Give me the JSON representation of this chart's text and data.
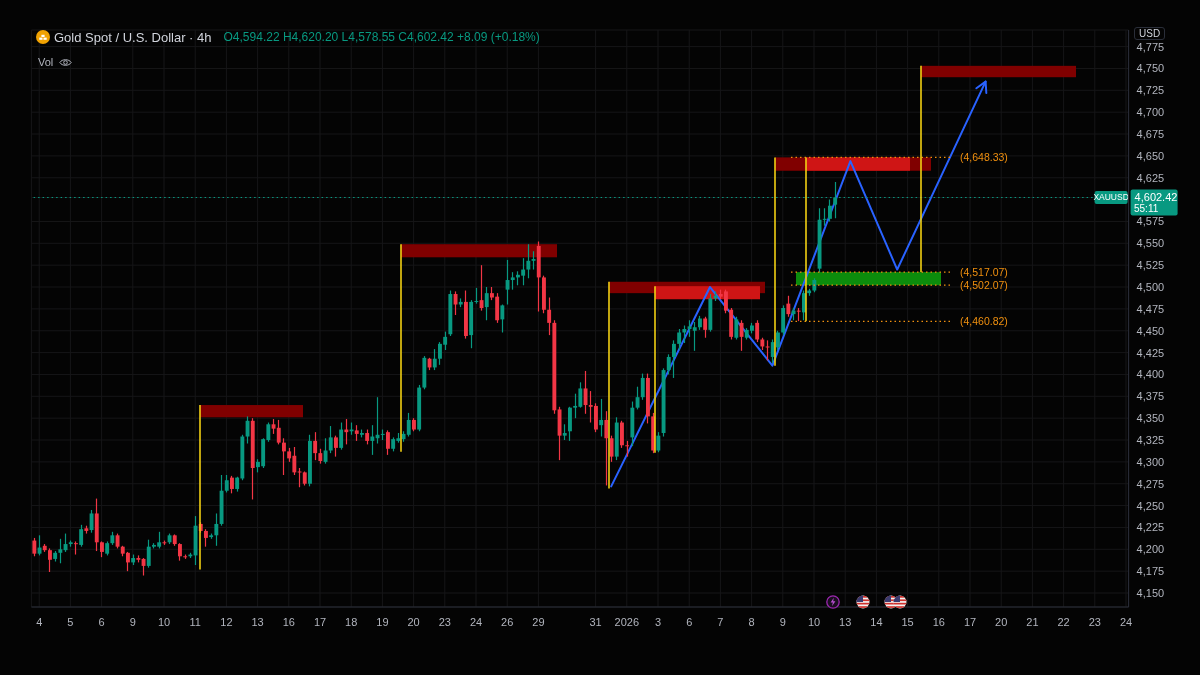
{
  "chart_data": {
    "type": "candlestick",
    "title": "Gold Spot / U.S. Dollar · 4h",
    "subtitle": "O4,594.22 H4,620.20 L4,578.55 C4,602.42 +8.09 (+0.18%)",
    "ylabel": "USD",
    "categories": [
      null,
      "4",
      null,
      null,
      null,
      null,
      null,
      "5",
      null,
      null,
      null,
      null,
      null,
      "6",
      null,
      null,
      null,
      null,
      null,
      "9",
      null,
      null,
      null,
      null,
      null,
      "10",
      null,
      null,
      null,
      null,
      null,
      "11",
      null,
      null,
      null,
      null,
      null,
      "12",
      null,
      null,
      null,
      null,
      null,
      "13",
      null,
      null,
      null,
      null,
      null,
      "16",
      null,
      null,
      null,
      null,
      null,
      "17",
      null,
      null,
      null,
      null,
      null,
      "18",
      null,
      null,
      null,
      null,
      null,
      "19",
      null,
      null,
      null,
      null,
      null,
      "20",
      null,
      null,
      null,
      null,
      null,
      "23",
      null,
      null,
      null,
      null,
      null,
      "24",
      null,
      null,
      null,
      null,
      null,
      "26",
      null,
      null,
      null,
      null,
      null,
      "29",
      null,
      null,
      null,
      null,
      null,
      null,
      null,
      null,
      null,
      null,
      "31",
      null,
      null,
      null,
      null,
      null,
      "2026",
      null,
      null,
      null,
      null,
      null,
      "3",
      null,
      null,
      null,
      null,
      null,
      "6",
      null,
      null,
      null,
      null,
      null,
      "7",
      null,
      null,
      null,
      null,
      null,
      "8",
      null,
      null,
      null,
      null,
      null,
      "9",
      null,
      null,
      null,
      null,
      null,
      "10",
      null,
      null,
      null,
      null,
      null,
      "13",
      null,
      null,
      null,
      null,
      null,
      "14",
      null,
      null,
      null,
      null,
      null,
      "15",
      null,
      null,
      null,
      null,
      null,
      "16",
      null,
      null,
      null,
      null,
      null,
      "17",
      null,
      null,
      null,
      null,
      null,
      "20",
      null,
      null,
      null,
      null,
      null,
      "21",
      null,
      null,
      null,
      null,
      null,
      "22",
      null,
      null,
      null,
      null,
      null,
      "23",
      null,
      null,
      null,
      null,
      null,
      "24"
    ],
    "ohlc": [
      [
        4210,
        4213,
        4192,
        4195
      ],
      [
        4195,
        4216,
        4193,
        4202
      ],
      [
        4204,
        4206,
        4197,
        4199
      ],
      [
        4199,
        4201,
        4174,
        4188
      ],
      [
        4189,
        4198,
        4186,
        4196
      ],
      [
        4196,
        4212,
        4184,
        4200
      ],
      [
        4199,
        4218,
        4197,
        4206
      ],
      [
        4206,
        4210,
        4203,
        4208
      ],
      [
        4207,
        4209,
        4194,
        4206
      ],
      [
        4205,
        4228,
        4203,
        4223
      ],
      [
        4224,
        4227,
        4218,
        4221
      ],
      [
        4222,
        4245,
        4219,
        4241
      ],
      [
        4241,
        4258,
        4198,
        4208
      ],
      [
        4208,
        4209,
        4191,
        4197
      ],
      [
        4195,
        4209,
        4193,
        4207
      ],
      [
        4207,
        4220,
        4205,
        4216
      ],
      [
        4216,
        4218,
        4201,
        4203
      ],
      [
        4203,
        4204,
        4192,
        4195
      ],
      [
        4196,
        4197,
        4175,
        4185
      ],
      [
        4185,
        4194,
        4182,
        4190
      ],
      [
        4190,
        4193,
        4185,
        4188
      ],
      [
        4189,
        4190,
        4170,
        4181
      ],
      [
        4181,
        4211,
        4179,
        4203
      ],
      [
        4203,
        4207,
        4201,
        4205
      ],
      [
        4203,
        4220,
        4201,
        4208
      ],
      [
        4208,
        4210,
        4205,
        4207
      ],
      [
        4208,
        4218,
        4206,
        4216
      ],
      [
        4216,
        4217,
        4204,
        4206
      ],
      [
        4206,
        4207,
        4187,
        4192
      ],
      [
        4192,
        4194,
        4189,
        4191
      ],
      [
        4192,
        4196,
        4190,
        4194
      ],
      [
        4193,
        4238,
        4182,
        4227
      ],
      [
        4229,
        4231,
        4219,
        4221
      ],
      [
        4221,
        4223,
        4203,
        4213
      ],
      [
        4214,
        4218,
        4212,
        4216
      ],
      [
        4216,
        4241,
        4204,
        4229
      ],
      [
        4229,
        4285,
        4227,
        4267
      ],
      [
        4267,
        4285,
        4265,
        4279
      ],
      [
        4282,
        4284,
        4264,
        4269
      ],
      [
        4269,
        4283,
        4266,
        4282
      ],
      [
        4281,
        4331,
        4279,
        4329
      ],
      [
        4329,
        4352,
        4321,
        4347
      ],
      [
        4347,
        4350,
        4257,
        4293
      ],
      [
        4294,
        4303,
        4288,
        4300
      ],
      [
        4295,
        4327,
        4293,
        4326
      ],
      [
        4325,
        4345,
        4323,
        4343
      ],
      [
        4343,
        4349,
        4332,
        4338
      ],
      [
        4339,
        4348,
        4320,
        4322
      ],
      [
        4322,
        4327,
        4285,
        4312
      ],
      [
        4312,
        4316,
        4300,
        4304
      ],
      [
        4307,
        4317,
        4285,
        4288
      ],
      [
        4289,
        4293,
        4271,
        4288
      ],
      [
        4288,
        4289,
        4273,
        4275
      ],
      [
        4275,
        4331,
        4272,
        4324
      ],
      [
        4324,
        4334,
        4302,
        4310
      ],
      [
        4310,
        4315,
        4298,
        4301
      ],
      [
        4300,
        4327,
        4298,
        4313
      ],
      [
        4313,
        4341,
        4310,
        4328
      ],
      [
        4328,
        4330,
        4306,
        4316
      ],
      [
        4316,
        4345,
        4314,
        4337
      ],
      [
        4337,
        4349,
        4320,
        4334
      ],
      [
        4335,
        4345,
        4331,
        4337
      ],
      [
        4336,
        4342,
        4324,
        4332
      ],
      [
        4331,
        4337,
        4328,
        4333
      ],
      [
        4333,
        4337,
        4320,
        4324
      ],
      [
        4324,
        4342,
        4308,
        4329
      ],
      [
        4327,
        4374,
        4321,
        4331
      ],
      [
        4331,
        4337,
        4325,
        4332
      ],
      [
        4334,
        4336,
        4308,
        4315
      ],
      [
        4315,
        4328,
        4312,
        4326
      ],
      [
        4324,
        4333,
        4322,
        4327
      ],
      [
        4326,
        4335,
        4323,
        4332
      ],
      [
        4331,
        4356,
        4329,
        4348
      ],
      [
        4348,
        4350,
        4335,
        4337
      ],
      [
        4337,
        4388,
        4335,
        4385
      ],
      [
        4385,
        4421,
        4383,
        4419
      ],
      [
        4418,
        4419,
        4405,
        4408
      ],
      [
        4408,
        4429,
        4405,
        4418
      ],
      [
        4418,
        4437,
        4411,
        4435
      ],
      [
        4434,
        4449,
        4428,
        4443
      ],
      [
        4446,
        4496,
        4444,
        4492
      ],
      [
        4492,
        4495,
        4468,
        4480
      ],
      [
        4480,
        4487,
        4477,
        4483
      ],
      [
        4483,
        4496,
        4441,
        4444
      ],
      [
        4445,
        4485,
        4430,
        4483
      ],
      [
        4483,
        4499,
        4481,
        4484
      ],
      [
        4485,
        4525,
        4473,
        4476
      ],
      [
        4477,
        4500,
        4462,
        4493
      ],
      [
        4493,
        4500,
        4485,
        4488
      ],
      [
        4489,
        4493,
        4459,
        4462
      ],
      [
        4463,
        4480,
        4448,
        4479
      ],
      [
        4497,
        4531,
        4480,
        4508
      ],
      [
        4508,
        4517,
        4497,
        4511
      ],
      [
        4511,
        4518,
        4502,
        4514
      ],
      [
        4513,
        4533,
        4502,
        4520
      ],
      [
        4520,
        4549,
        4510,
        4530
      ],
      [
        4530,
        4541,
        4520,
        4532
      ],
      [
        4547,
        4552,
        4472,
        4511
      ],
      [
        4511,
        4513,
        4470,
        4474
      ],
      [
        4474,
        4488,
        4445,
        4459
      ],
      [
        4459,
        4462,
        4355,
        4359
      ],
      [
        4360,
        4363,
        4302,
        4330
      ],
      [
        4330,
        4343,
        4325,
        4333
      ],
      [
        4335,
        4363,
        4324,
        4362
      ],
      [
        4362,
        4378,
        4350,
        4364
      ],
      [
        4363,
        4391,
        4362,
        4384
      ],
      [
        4384,
        4404,
        4355,
        4365
      ],
      [
        4365,
        4381,
        4345,
        4363
      ],
      [
        4364,
        4367,
        4334,
        4337
      ],
      [
        4342,
        4372,
        4329,
        4348
      ],
      [
        4348,
        4358,
        4273,
        4327
      ],
      [
        4327,
        4330,
        4300,
        4306
      ],
      [
        4306,
        4351,
        4302,
        4345
      ],
      [
        4345,
        4347,
        4316,
        4319
      ],
      [
        4319,
        4324,
        4306,
        4318
      ],
      [
        4328,
        4369,
        4318,
        4362
      ],
      [
        4362,
        4386,
        4360,
        4374
      ],
      [
        4374,
        4401,
        4371,
        4396
      ],
      [
        4396,
        4401,
        4344,
        4352
      ],
      [
        4352,
        4356,
        4310,
        4313
      ],
      [
        4313,
        4334,
        4311,
        4330
      ],
      [
        4333,
        4407,
        4329,
        4405
      ],
      [
        4405,
        4423,
        4400,
        4420
      ],
      [
        4420,
        4439,
        4396,
        4435
      ],
      [
        4435,
        4452,
        4428,
        4448
      ],
      [
        4448,
        4456,
        4436,
        4452
      ],
      [
        4452,
        4462,
        4443,
        4455
      ],
      [
        4450,
        4460,
        4427,
        4454
      ],
      [
        4454,
        4467,
        4451,
        4464
      ],
      [
        4464,
        4466,
        4442,
        4451
      ],
      [
        4451,
        4492,
        4449,
        4487
      ],
      [
        4487,
        4495,
        4484,
        4490
      ],
      [
        4492,
        4497,
        4486,
        4489
      ],
      [
        4495,
        4497,
        4470,
        4473
      ],
      [
        4474,
        4476,
        4440,
        4443
      ],
      [
        4442,
        4466,
        4440,
        4463
      ],
      [
        4459,
        4462,
        4427,
        4443
      ],
      [
        4442,
        4453,
        4440,
        4451
      ],
      [
        4450,
        4459,
        4447,
        4456
      ],
      [
        4459,
        4462,
        4437,
        4440
      ],
      [
        4440,
        4442,
        4428,
        4432
      ],
      [
        4432,
        4439,
        4416,
        4431
      ],
      [
        4420,
        4440,
        4413,
        4437
      ],
      [
        4431,
        4450,
        4428,
        4448
      ],
      [
        4448,
        4479,
        4445,
        4476
      ],
      [
        4481,
        4490,
        4466,
        4469
      ],
      [
        4469,
        4476,
        4462,
        4473
      ],
      [
        4473,
        4476,
        4461,
        4472
      ],
      [
        4471,
        4496,
        4462,
        4493
      ],
      [
        4493,
        4498,
        4490,
        4496
      ],
      [
        4496,
        4510,
        4494,
        4508
      ],
      [
        4521,
        4590,
        4517,
        4577
      ],
      [
        4577,
        4590,
        4570,
        4578
      ],
      [
        4578,
        4600,
        4575,
        4593
      ],
      [
        4594.22,
        4620.2,
        4578.55,
        4602.42
      ],
      null,
      null,
      null,
      null,
      null,
      null,
      null,
      null,
      null,
      null,
      null,
      null,
      null,
      null,
      null,
      null,
      null,
      null,
      null,
      null,
      null,
      null,
      null,
      null,
      null,
      null,
      null,
      null,
      null,
      null,
      null,
      null,
      null,
      null,
      null,
      null,
      null,
      null,
      null,
      null,
      null,
      null,
      null,
      null,
      null,
      null,
      null,
      null,
      null,
      null,
      null,
      null,
      null,
      null,
      null,
      null
    ],
    "colors": [
      "#f23645",
      "#089981",
      "#f23645",
      "#f23645",
      "#089981",
      "#089981",
      "#089981",
      "#089981",
      "#f23645",
      "#089981",
      "#f23645",
      "#089981",
      "#f23645",
      "#f23645",
      "#089981",
      "#089981",
      "#f23645",
      "#f23645",
      "#f23645",
      "#089981",
      "#f23645",
      "#f23645",
      "#089981",
      "#089981",
      "#089981",
      "#f23645",
      "#089981",
      "#f23645",
      "#f23645",
      "#f23645",
      "#089981",
      "#089981",
      "#f23645",
      "#f23645",
      "#089981",
      "#089981",
      "#089981",
      "#089981",
      "#f23645",
      "#089981",
      "#089981",
      "#089981",
      "#f23645",
      "#089981",
      "#089981",
      "#089981",
      "#f23645",
      "#f23645",
      "#f23645",
      "#f23645",
      "#f23645",
      "#f23645",
      "#f23645",
      "#089981",
      "#f23645",
      "#f23645",
      "#089981",
      "#089981",
      "#f23645",
      "#089981",
      "#f23645",
      "#089981",
      "#f23645",
      "#089981",
      "#f23645",
      "#089981",
      "#089981",
      "#089981",
      "#f23645",
      "#089981",
      "#089981",
      "#089981",
      "#089981",
      "#f23645",
      "#089981",
      "#089981",
      "#f23645",
      "#089981",
      "#089981",
      "#089981",
      "#089981",
      "#f23645",
      "#089981",
      "#f23645",
      "#089981",
      "#089981",
      "#f23645",
      "#089981",
      "#f23645",
      "#f23645",
      "#089981",
      "#089981",
      "#089981",
      "#089981",
      "#089981",
      "#089981",
      "#089981",
      "#f23645",
      "#f23645",
      "#f23645",
      "#f23645",
      "#f23645",
      "#089981",
      "#089981",
      "#089981",
      "#089981",
      "#f23645",
      "#f23645",
      "#f23645",
      "#089981",
      "#f23645",
      "#f23645",
      "#089981",
      "#f23645",
      "#f23645",
      "#089981",
      "#089981",
      "#089981",
      "#f23645",
      "#f23645",
      "#089981",
      "#089981",
      "#089981",
      "#089981",
      "#089981",
      "#089981",
      "#089981",
      "#089981",
      "#089981",
      "#f23645",
      "#089981",
      "#089981",
      "#f23645",
      "#f23645",
      "#f23645",
      "#089981",
      "#f23645",
      "#089981",
      "#089981",
      "#f23645",
      "#f23645",
      "#f23645",
      "#089981",
      "#089981",
      "#089981",
      "#f23645",
      "#089981",
      "#f23645",
      "#089981",
      "#089981",
      "#089981",
      "#089981",
      "#089981",
      "#089981",
      "#089981",
      null,
      null,
      null,
      null,
      null,
      null,
      null,
      null,
      null,
      null,
      null,
      null,
      null,
      null,
      null,
      null,
      null,
      null,
      null,
      null,
      null,
      null,
      null,
      null,
      null,
      null,
      null,
      null,
      null,
      null,
      null,
      null,
      null,
      null,
      null,
      null,
      null,
      null,
      null,
      null,
      null,
      null,
      null,
      null,
      null,
      null,
      null,
      null,
      null,
      null,
      null,
      null,
      null,
      null,
      null,
      null
    ],
    "series": [
      {
        "type": "line",
        "color": "#2962ff",
        "values": [
          null,
          null,
          null,
          null,
          null,
          null,
          null,
          null,
          null,
          null,
          null,
          null,
          null,
          null,
          null,
          null,
          null,
          null,
          null,
          null,
          null,
          null,
          null,
          null,
          null,
          null,
          null,
          null,
          null,
          null,
          null,
          null,
          null,
          null,
          null,
          null,
          null,
          null,
          null,
          null,
          null,
          null,
          null,
          null,
          null,
          null,
          null,
          null,
          null,
          null,
          null,
          null,
          null,
          null,
          null,
          null,
          null,
          null,
          null,
          null,
          null,
          null,
          null,
          null,
          null,
          null,
          null,
          null,
          null,
          null,
          null,
          null,
          null,
          null,
          null,
          null,
          null,
          null,
          null,
          null,
          null,
          null,
          null,
          null,
          null,
          null,
          null,
          null,
          null,
          null,
          null,
          null,
          null,
          null,
          null,
          null,
          null,
          null,
          null,
          null,
          null,
          null,
          null,
          null,
          null,
          null,
          null,
          null,
          null,
          null,
          null,
          4272,
          null,
          null,
          null,
          null,
          null,
          null,
          null,
          null,
          null,
          null,
          null,
          null,
          null,
          null,
          null,
          null,
          null,
          null,
          4500,
          null,
          null,
          null,
          null,
          null,
          null,
          null,
          null,
          null,
          null,
          null,
          4410,
          null,
          null,
          null,
          null,
          null,
          null,
          null,
          null,
          null,
          null,
          null,
          null,
          null,
          null,
          4644,
          null,
          null,
          null,
          null,
          null,
          null,
          null,
          null,
          4520,
          null,
          null,
          null,
          null,
          null,
          null,
          null,
          null,
          null,
          null,
          null,
          null,
          null,
          null,
          null,
          null,
          4735,
          null,
          null,
          null,
          null,
          null,
          null,
          null,
          null,
          null,
          null,
          null,
          null,
          null,
          null,
          null,
          null,
          null,
          null,
          null,
          null,
          null,
          null,
          null,
          null,
          null,
          null,
          null
        ]
      }
    ],
    "bands": [
      {
        "axis": "y",
        "from": 4351,
        "to": 4365,
        "color": "#800000"
      },
      {
        "axis": "y",
        "from": 4534,
        "to": 4549,
        "color": "#800000"
      },
      {
        "axis": "y",
        "from": 4493,
        "to": 4506,
        "color": "#800000"
      },
      {
        "axis": "y",
        "from": 4486,
        "to": 4501,
        "color": "#cf1515"
      },
      {
        "axis": "y",
        "from": 4633,
        "to": 4648.33,
        "color": "#800000"
      },
      {
        "axis": "y",
        "from": 4633,
        "to": 4648.33,
        "color": "#cf1515"
      },
      {
        "axis": "y",
        "from": 4502.07,
        "to": 4517.07,
        "color": "#0c8c0c"
      },
      {
        "axis": "y",
        "from": 4740,
        "to": 4753,
        "color": "#800000"
      }
    ],
    "ref_lines": [
      {
        "axis": "y",
        "value": 4602.42,
        "label": "XAUUSD",
        "color": "#089981",
        "line_style": "dotted"
      },
      {
        "axis": "y",
        "value": 4648.33,
        "label": "(4,648.33)",
        "color": "#f0900f",
        "line_style": "dotted"
      },
      {
        "axis": "y",
        "value": 4517.07,
        "label": "(4,517.07)",
        "color": "#f0900f",
        "line_style": "dotted"
      },
      {
        "axis": "y",
        "value": 4502.07,
        "label": "(4,502.07)",
        "color": "#f0900f",
        "line_style": "dotted"
      },
      {
        "axis": "y",
        "value": 4460.82,
        "label": "(4,460.82)",
        "color": "#f0900f",
        "line_style": "dotted"
      }
    ],
    "annotations": [
      "55:11",
      "Vol"
    ],
    "ylim": [
      4134,
      4794
    ],
    "yticks": [
      {
        "value": 4150,
        "label": "4,150"
      },
      {
        "value": 4175,
        "label": "4,175"
      },
      {
        "value": 4200,
        "label": "4,200"
      },
      {
        "value": 4225,
        "label": "4,225"
      },
      {
        "value": 4250,
        "label": "4,250"
      },
      {
        "value": 4275,
        "label": "4,275"
      },
      {
        "value": 4300,
        "label": "4,300"
      },
      {
        "value": 4325,
        "label": "4,325"
      },
      {
        "value": 4350,
        "label": "4,350"
      },
      {
        "value": 4375,
        "label": "4,375"
      },
      {
        "value": 4400,
        "label": "4,400"
      },
      {
        "value": 4425,
        "label": "4,425"
      },
      {
        "value": 4450,
        "label": "4,450"
      },
      {
        "value": 4475,
        "label": "4,475"
      },
      {
        "value": 4500,
        "label": "4,500"
      },
      {
        "value": 4525,
        "label": "4,525"
      },
      {
        "value": 4550,
        "label": "4,550"
      },
      {
        "value": 4575,
        "label": "4,575"
      },
      {
        "value": 4602.42,
        "label": "4,602.42"
      },
      {
        "value": 4625,
        "label": "4,625"
      },
      {
        "value": 4650,
        "label": "4,650"
      },
      {
        "value": 4675,
        "label": "4,675"
      },
      {
        "value": 4700,
        "label": "4,700"
      },
      {
        "value": 4725,
        "label": "4,725"
      },
      {
        "value": 4750,
        "label": "4,750"
      },
      {
        "value": 4775,
        "label": "4,775"
      }
    ],
    "grid": true
  }
}
